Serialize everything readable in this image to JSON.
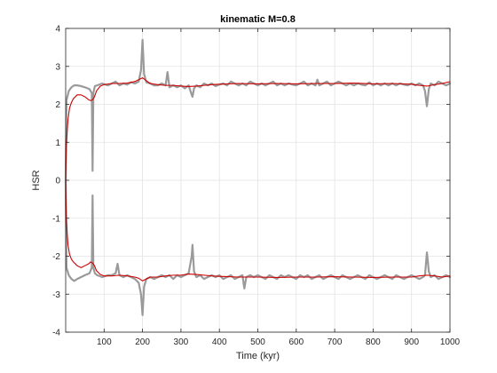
{
  "chart_data": {
    "type": "line",
    "title": "kinematic M=0.8",
    "xlabel": "Time (kyr)",
    "ylabel": "HSR",
    "xlim": [
      0,
      1000
    ],
    "ylim": [
      -4,
      4
    ],
    "xticks": [
      100,
      200,
      300,
      400,
      500,
      600,
      700,
      800,
      900,
      1000
    ],
    "yticks": [
      -4,
      -3,
      -2,
      -1,
      0,
      1,
      2,
      3,
      4
    ],
    "grid": true,
    "colors": {
      "raw": "#9a9a9a",
      "smooth": "#cc0000",
      "grid": "#e3e3e3",
      "axes": "#262626"
    },
    "series": [
      {
        "role": "raw-upper",
        "x": [
          0,
          2,
          8,
          15,
          22,
          30,
          40,
          50,
          62,
          68,
          70,
          72,
          76,
          82,
          95,
          110,
          120,
          130,
          140,
          150,
          160,
          170,
          180,
          190,
          196,
          200,
          204,
          210,
          220,
          230,
          240,
          250,
          260,
          265,
          270,
          280,
          290,
          300,
          310,
          320,
          328,
          330,
          334,
          340,
          350,
          360,
          370,
          380,
          390,
          400,
          410,
          420,
          430,
          440,
          450,
          460,
          470,
          480,
          490,
          500,
          510,
          520,
          530,
          540,
          550,
          560,
          570,
          580,
          590,
          600,
          610,
          620,
          630,
          640,
          650,
          655,
          660,
          670,
          680,
          690,
          700,
          710,
          720,
          730,
          740,
          750,
          760,
          770,
          780,
          790,
          800,
          810,
          820,
          830,
          840,
          850,
          860,
          870,
          880,
          890,
          900,
          910,
          920,
          930,
          935,
          940,
          945,
          950,
          960,
          970,
          980,
          990,
          1000
        ],
        "y": [
          0.0,
          2.1,
          2.35,
          2.45,
          2.5,
          2.5,
          2.48,
          2.45,
          2.4,
          2.3,
          0.25,
          2.3,
          2.48,
          2.5,
          2.55,
          2.5,
          2.55,
          2.6,
          2.5,
          2.55,
          2.52,
          2.58,
          2.55,
          2.6,
          2.9,
          3.7,
          2.8,
          2.58,
          2.55,
          2.5,
          2.5,
          2.55,
          2.5,
          2.85,
          2.45,
          2.5,
          2.45,
          2.5,
          2.42,
          2.5,
          2.25,
          2.2,
          2.42,
          2.5,
          2.45,
          2.55,
          2.5,
          2.55,
          2.48,
          2.52,
          2.55,
          2.5,
          2.6,
          2.55,
          2.5,
          2.55,
          2.5,
          2.6,
          2.55,
          2.5,
          2.55,
          2.5,
          2.55,
          2.6,
          2.5,
          2.55,
          2.5,
          2.55,
          2.52,
          2.5,
          2.55,
          2.6,
          2.5,
          2.55,
          2.5,
          2.65,
          2.5,
          2.55,
          2.6,
          2.5,
          2.55,
          2.6,
          2.55,
          2.5,
          2.55,
          2.5,
          2.55,
          2.52,
          2.5,
          2.58,
          2.5,
          2.55,
          2.5,
          2.55,
          2.5,
          2.55,
          2.5,
          2.55,
          2.52,
          2.5,
          2.55,
          2.5,
          2.55,
          2.5,
          2.35,
          1.95,
          2.4,
          2.55,
          2.5,
          2.6,
          2.55,
          2.5,
          2.55
        ]
      },
      {
        "role": "raw-lower",
        "x": [
          0,
          2,
          8,
          15,
          22,
          30,
          40,
          50,
          62,
          68,
          70,
          72,
          76,
          82,
          95,
          110,
          120,
          130,
          135,
          140,
          150,
          160,
          170,
          180,
          190,
          196,
          200,
          204,
          210,
          220,
          230,
          240,
          250,
          260,
          270,
          280,
          290,
          300,
          310,
          320,
          328,
          330,
          334,
          340,
          350,
          360,
          370,
          380,
          390,
          400,
          410,
          420,
          430,
          440,
          450,
          460,
          465,
          470,
          480,
          490,
          500,
          510,
          520,
          530,
          540,
          550,
          560,
          570,
          580,
          590,
          600,
          610,
          620,
          630,
          640,
          650,
          660,
          670,
          680,
          690,
          700,
          710,
          720,
          730,
          740,
          750,
          760,
          770,
          780,
          790,
          800,
          810,
          820,
          830,
          840,
          850,
          860,
          870,
          880,
          890,
          900,
          910,
          920,
          930,
          935,
          940,
          945,
          950,
          960,
          970,
          980,
          990,
          1000
        ],
        "y": [
          0.0,
          -2.3,
          -2.5,
          -2.6,
          -2.65,
          -2.6,
          -2.55,
          -2.5,
          -2.45,
          -2.3,
          -0.4,
          -2.3,
          -2.45,
          -2.5,
          -2.55,
          -2.5,
          -2.5,
          -2.45,
          -2.2,
          -2.5,
          -2.55,
          -2.5,
          -2.55,
          -2.6,
          -2.7,
          -3.0,
          -3.55,
          -2.8,
          -2.6,
          -2.55,
          -2.6,
          -2.55,
          -2.5,
          -2.55,
          -2.5,
          -2.6,
          -2.5,
          -2.55,
          -2.5,
          -2.45,
          -2.0,
          -1.7,
          -2.4,
          -2.55,
          -2.5,
          -2.6,
          -2.55,
          -2.5,
          -2.55,
          -2.5,
          -2.6,
          -2.55,
          -2.5,
          -2.6,
          -2.55,
          -2.5,
          -2.85,
          -2.55,
          -2.5,
          -2.55,
          -2.5,
          -2.55,
          -2.6,
          -2.5,
          -2.55,
          -2.6,
          -2.5,
          -2.55,
          -2.5,
          -2.55,
          -2.6,
          -2.5,
          -2.55,
          -2.5,
          -2.6,
          -2.55,
          -2.5,
          -2.6,
          -2.55,
          -2.5,
          -2.55,
          -2.6,
          -2.5,
          -2.55,
          -2.6,
          -2.55,
          -2.5,
          -2.55,
          -2.6,
          -2.5,
          -2.55,
          -2.6,
          -2.55,
          -2.5,
          -2.55,
          -2.6,
          -2.5,
          -2.55,
          -2.6,
          -2.55,
          -2.5,
          -2.55,
          -2.6,
          -2.55,
          -2.5,
          -1.9,
          -2.4,
          -2.55,
          -2.5,
          -2.6,
          -2.55,
          -2.5,
          -2.55
        ]
      },
      {
        "role": "smooth-upper",
        "x": [
          0,
          1,
          2,
          4,
          6,
          10,
          15,
          20,
          30,
          40,
          50,
          60,
          65,
          70,
          75,
          80,
          90,
          100,
          120,
          140,
          160,
          180,
          190,
          200,
          210,
          220,
          240,
          260,
          280,
          300,
          320,
          340,
          360,
          380,
          400,
          450,
          500,
          550,
          600,
          650,
          700,
          750,
          800,
          850,
          900,
          920,
          940,
          960,
          980,
          1000
        ],
        "y": [
          0.0,
          0.5,
          0.9,
          1.3,
          1.6,
          1.9,
          2.05,
          2.15,
          2.25,
          2.25,
          2.2,
          2.12,
          2.1,
          2.12,
          2.2,
          2.35,
          2.48,
          2.52,
          2.55,
          2.55,
          2.56,
          2.6,
          2.65,
          2.7,
          2.62,
          2.55,
          2.52,
          2.5,
          2.5,
          2.48,
          2.47,
          2.48,
          2.5,
          2.52,
          2.53,
          2.55,
          2.54,
          2.55,
          2.54,
          2.55,
          2.55,
          2.56,
          2.54,
          2.55,
          2.53,
          2.5,
          2.48,
          2.52,
          2.55,
          2.6
        ]
      },
      {
        "role": "smooth-lower",
        "x": [
          0,
          1,
          2,
          4,
          6,
          10,
          15,
          20,
          30,
          40,
          50,
          60,
          65,
          70,
          75,
          80,
          90,
          100,
          120,
          140,
          160,
          180,
          190,
          200,
          210,
          220,
          240,
          260,
          280,
          300,
          320,
          340,
          360,
          380,
          400,
          450,
          500,
          550,
          600,
          650,
          700,
          750,
          800,
          850,
          900,
          920,
          940,
          960,
          980,
          1000
        ],
        "y": [
          0.0,
          -0.6,
          -1.0,
          -1.4,
          -1.7,
          -1.95,
          -2.08,
          -2.15,
          -2.25,
          -2.3,
          -2.25,
          -2.2,
          -2.15,
          -2.18,
          -2.25,
          -2.38,
          -2.48,
          -2.52,
          -2.52,
          -2.5,
          -2.52,
          -2.55,
          -2.58,
          -2.65,
          -2.6,
          -2.55,
          -2.55,
          -2.52,
          -2.5,
          -2.5,
          -2.47,
          -2.48,
          -2.5,
          -2.52,
          -2.53,
          -2.55,
          -2.55,
          -2.56,
          -2.55,
          -2.55,
          -2.54,
          -2.55,
          -2.56,
          -2.55,
          -2.55,
          -2.52,
          -2.5,
          -2.52,
          -2.55,
          -2.52
        ]
      }
    ]
  }
}
